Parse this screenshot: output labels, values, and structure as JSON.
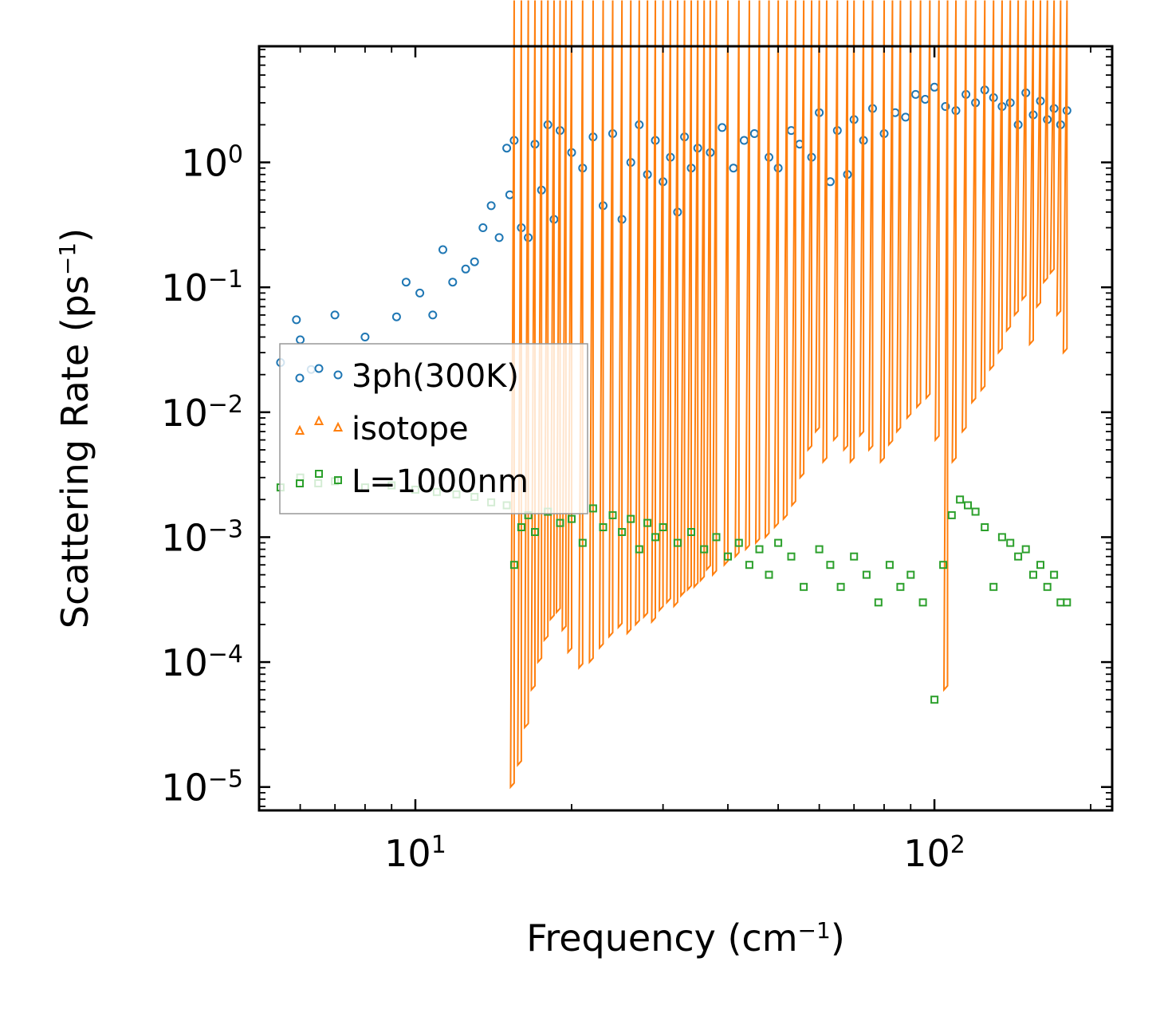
{
  "chart_data": {
    "type": "scatter",
    "xscale": "log",
    "yscale": "log",
    "xlabel": "Frequency (cm",
    "xlabel_sup": "−1",
    "xlabel_suffix": ")",
    "ylabel": "Scattering Rate (ps",
    "ylabel_sup": "−1",
    "ylabel_suffix": ")",
    "xlim": [
      5,
      220
    ],
    "ylim": [
      6.5e-06,
      8.5
    ],
    "xticks": [
      {
        "value": 10,
        "base": "10",
        "exp": "1"
      },
      {
        "value": 100,
        "base": "10",
        "exp": "2"
      }
    ],
    "yticks": [
      {
        "value": 1,
        "base": "10",
        "exp": "0"
      },
      {
        "value": 0.1,
        "base": "10",
        "exp": "−1"
      },
      {
        "value": 0.01,
        "base": "10",
        "exp": "−2"
      },
      {
        "value": 0.001,
        "base": "10",
        "exp": "−3"
      },
      {
        "value": 0.0001,
        "base": "10",
        "exp": "−4"
      },
      {
        "value": 1e-05,
        "base": "10",
        "exp": "−5"
      }
    ],
    "legend": {
      "placement": "center-left"
    },
    "series": [
      {
        "name": "3ph(300K)",
        "marker": "circle",
        "color": "#1f77b4",
        "x": [
          5.5,
          5.9,
          6.0,
          6.3,
          7.0,
          8.0,
          9.2,
          9.6,
          10.2,
          10.8,
          11.3,
          11.8,
          12.5,
          13.0,
          13.5,
          14.0,
          14.5,
          15.0,
          15.2,
          15.5,
          16.0,
          16.5,
          17.0,
          17.5,
          18.0,
          18.5,
          19.0,
          20.0,
          21.0,
          22.0,
          23.0,
          24.0,
          25.0,
          26.0,
          27.0,
          28.0,
          29.0,
          30.0,
          31.0,
          32.0,
          33.0,
          34.0,
          35.0,
          37.0,
          39.0,
          41.0,
          43.0,
          45.0,
          48.0,
          50.0,
          53.0,
          55.0,
          58.0,
          60.0,
          63.0,
          65.0,
          68.0,
          70.0,
          73.0,
          76.0,
          80.0,
          84.0,
          88.0,
          92.0,
          96.0,
          100.0,
          105.0,
          110.0,
          115.0,
          120.0,
          125.0,
          130.0,
          135.0,
          140.0,
          145.0,
          150.0,
          155.0,
          160.0,
          165.0,
          170.0,
          175.0,
          180.0
        ],
        "y": [
          0.025,
          0.055,
          0.038,
          0.022,
          0.06,
          0.04,
          0.058,
          0.11,
          0.09,
          0.06,
          0.2,
          0.11,
          0.14,
          0.16,
          0.3,
          0.45,
          0.25,
          1.3,
          0.55,
          1.5,
          0.3,
          0.25,
          1.4,
          0.6,
          2.0,
          0.35,
          1.8,
          1.2,
          0.9,
          1.6,
          0.45,
          1.7,
          0.35,
          1.0,
          2.0,
          0.8,
          1.5,
          0.7,
          1.1,
          0.4,
          1.6,
          0.9,
          1.3,
          1.2,
          1.9,
          0.9,
          1.5,
          1.7,
          1.1,
          0.9,
          1.8,
          1.4,
          1.1,
          2.5,
          0.7,
          1.8,
          0.8,
          2.2,
          1.5,
          2.7,
          1.7,
          2.5,
          2.3,
          3.5,
          3.2,
          4.0,
          2.8,
          2.6,
          3.5,
          3.0,
          3.8,
          3.3,
          2.8,
          3.0,
          2.0,
          3.6,
          2.4,
          3.1,
          2.2,
          2.7,
          2.0,
          2.6
        ]
      },
      {
        "name": "isotope",
        "marker": "triangle",
        "color": "#ff7f0e",
        "x": [
          15.5,
          16.0,
          16.5,
          17.0,
          17.5,
          18.0,
          18.5,
          19.0,
          19.5,
          20.0,
          21.0,
          22.0,
          23.0,
          24.0,
          25.0,
          26.0,
          27.0,
          28.0,
          29.0,
          30.0,
          31.0,
          32.0,
          33.0,
          34.0,
          35.0,
          36.0,
          37.0,
          38.0,
          40.0,
          42.0,
          44.0,
          46.0,
          48.0,
          50.0,
          52.0,
          54.0,
          56.0,
          58.0,
          60.0,
          62.0,
          65.0,
          68.0,
          70.0,
          73.0,
          76.0,
          80.0,
          83.0,
          86.0,
          90.0,
          94.0,
          98.0,
          102.0,
          106.0,
          110.0,
          115.0,
          120.0,
          125.0,
          130.0,
          135.0,
          140.0,
          145.0,
          150.0,
          155.0,
          160.0,
          165.0,
          170.0,
          175.0,
          180.0
        ],
        "y": [
          1e-05,
          1.5e-05,
          3e-05,
          6e-05,
          0.0001,
          0.00015,
          0.00022,
          0.00025,
          0.00018,
          0.00012,
          9e-05,
          0.0001,
          0.00013,
          0.00016,
          0.00019,
          0.00017,
          0.0002,
          0.00023,
          0.00021,
          0.00026,
          0.0003,
          0.00028,
          0.00034,
          0.00038,
          0.0004,
          0.00045,
          0.00055,
          0.0005,
          0.0006,
          0.0007,
          0.0008,
          0.0009,
          0.001,
          0.0012,
          0.0014,
          0.0018,
          0.003,
          0.005,
          0.007,
          0.004,
          0.006,
          0.005,
          0.004,
          0.0065,
          0.005,
          0.004,
          0.0055,
          0.007,
          0.009,
          0.011,
          0.013,
          0.006,
          6e-05,
          0.004,
          0.007,
          0.012,
          0.015,
          0.022,
          0.03,
          0.045,
          0.06,
          0.08,
          0.035,
          0.07,
          0.11,
          0.13,
          0.06,
          0.03
        ]
      },
      {
        "name": "L=1000nm",
        "marker": "square",
        "color": "#2ca02c",
        "x": [
          5.5,
          6.0,
          6.5,
          7.0,
          8.0,
          9.0,
          10.0,
          11.0,
          12.0,
          13.0,
          14.0,
          15.0,
          15.5,
          16.0,
          16.5,
          17.0,
          18.0,
          19.0,
          20.0,
          21.0,
          22.0,
          23.0,
          24.0,
          25.0,
          26.0,
          27.0,
          28.0,
          29.0,
          30.0,
          32.0,
          34.0,
          36.0,
          38.0,
          40.0,
          42.0,
          44.0,
          46.0,
          48.0,
          50.0,
          53.0,
          56.0,
          60.0,
          63.0,
          66.0,
          70.0,
          74.0,
          78.0,
          82.0,
          86.0,
          90.0,
          95.0,
          100.0,
          104.0,
          108.0,
          112.0,
          116.0,
          120.0,
          125.0,
          130.0,
          135.0,
          140.0,
          145.0,
          150.0,
          155.0,
          160.0,
          165.0,
          170.0,
          175.0,
          180.0
        ],
        "y": [
          0.0025,
          0.003,
          0.0027,
          0.0028,
          0.0025,
          0.0026,
          0.0024,
          0.0023,
          0.0022,
          0.0021,
          0.0019,
          0.0018,
          0.0006,
          0.0012,
          0.0015,
          0.0011,
          0.0016,
          0.0013,
          0.0014,
          0.0009,
          0.0017,
          0.0012,
          0.0015,
          0.0011,
          0.0014,
          0.0008,
          0.0013,
          0.001,
          0.0012,
          0.0009,
          0.0011,
          0.0008,
          0.001,
          0.0007,
          0.0009,
          0.0006,
          0.0008,
          0.0005,
          0.0009,
          0.0007,
          0.0004,
          0.0008,
          0.0006,
          0.0004,
          0.0007,
          0.0005,
          0.0003,
          0.0006,
          0.0004,
          0.0005,
          0.0003,
          5e-05,
          0.0006,
          0.0015,
          0.002,
          0.0018,
          0.0016,
          0.0012,
          0.0004,
          0.001,
          0.0009,
          0.0007,
          0.0008,
          0.0005,
          0.0006,
          0.0004,
          0.0005,
          0.0003,
          0.0003
        ]
      }
    ]
  }
}
